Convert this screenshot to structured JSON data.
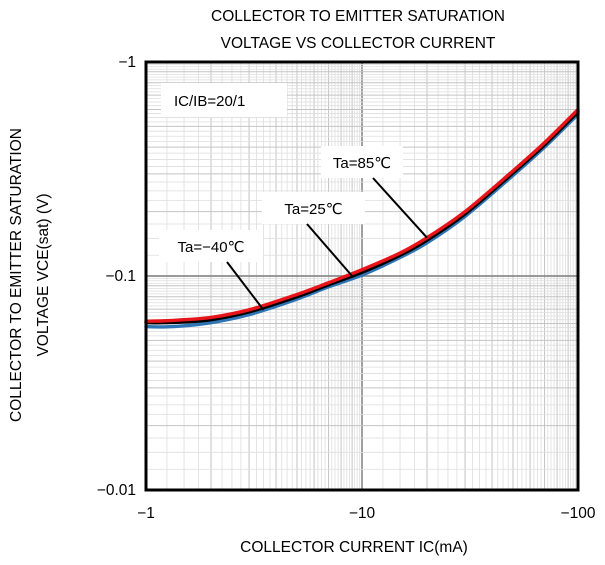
{
  "chart_data": {
    "type": "line",
    "title": [
      "COLLECTOR TO EMITTER SATURATION",
      "VOLTAGE VS COLLECTOR CURRENT"
    ],
    "xlabel": "COLLECTOR CURRENT  IC(mA)",
    "ylabel": [
      "COLLECTOR TO EMITTER SATURATION",
      "VOLTAGE VCE(sat) (V)"
    ],
    "x_scale": "log",
    "y_scale": "log",
    "xlim": [
      -1,
      -100
    ],
    "ylim": [
      -0.01,
      -1
    ],
    "x_ticks": [
      {
        "value": -1,
        "label": "−1"
      },
      {
        "value": -10,
        "label": "−10"
      },
      {
        "value": -100,
        "label": "−100"
      }
    ],
    "y_ticks": [
      {
        "value": -0.01,
        "label": "−0.01"
      },
      {
        "value": -0.1,
        "label": "−0.1"
      },
      {
        "value": -1,
        "label": "−1"
      }
    ],
    "grid": true,
    "condition_label": "IC/IB=20/1",
    "series": [
      {
        "name": "Ta=−40℃",
        "color": "#2e75b6",
        "x": [
          -1,
          -1.2,
          -1.5,
          -2,
          -3,
          -5,
          -7,
          -10,
          -15,
          -20,
          -30,
          -50,
          -70,
          -100
        ],
        "y": [
          -0.058,
          -0.0578,
          -0.0585,
          -0.0605,
          -0.066,
          -0.078,
          -0.089,
          -0.101,
          -0.122,
          -0.143,
          -0.19,
          -0.295,
          -0.4,
          -0.57
        ]
      },
      {
        "name": "Ta=25℃",
        "color": "#000000",
        "x": [
          -1,
          -1.2,
          -1.5,
          -2,
          -3,
          -5,
          -7,
          -10,
          -15,
          -20,
          -30,
          -50,
          -70,
          -100
        ],
        "y": [
          -0.0605,
          -0.0605,
          -0.061,
          -0.0625,
          -0.068,
          -0.08,
          -0.091,
          -0.104,
          -0.125,
          -0.147,
          -0.195,
          -0.303,
          -0.41,
          -0.585
        ]
      },
      {
        "name": "Ta=85℃",
        "color": "#e8141a",
        "x": [
          -1,
          -1.2,
          -1.5,
          -2,
          -3,
          -5,
          -7,
          -10,
          -15,
          -20,
          -30,
          -50,
          -70,
          -100
        ],
        "y": [
          -0.0615,
          -0.0617,
          -0.0625,
          -0.064,
          -0.0695,
          -0.082,
          -0.093,
          -0.107,
          -0.128,
          -0.151,
          -0.2,
          -0.31,
          -0.42,
          -0.6
        ]
      }
    ],
    "annotations": [
      {
        "label": "Ta=85℃",
        "series": "Ta=85℃"
      },
      {
        "label": "Ta=25℃",
        "series": "Ta=25℃"
      },
      {
        "label": "Ta=−40℃",
        "series": "Ta=−40℃"
      }
    ]
  }
}
